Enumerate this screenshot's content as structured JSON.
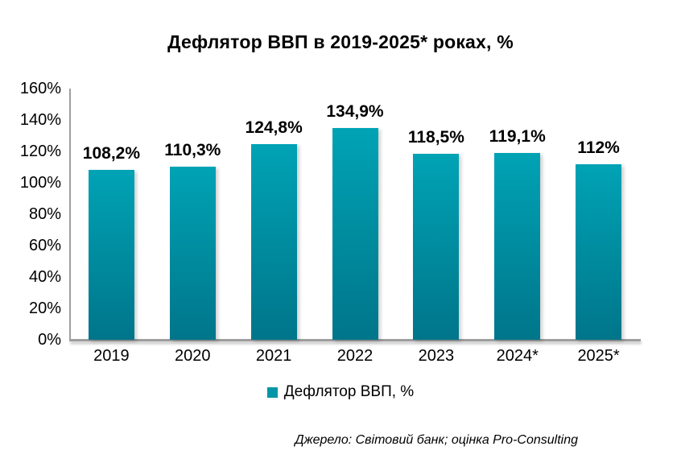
{
  "title": "Дефлятор ВВП в 2019-2025* роках, %",
  "chart_data": {
    "type": "bar",
    "title": "Дефлятор ВВП в 2019-2025* роках, %",
    "categories": [
      "2019",
      "2020",
      "2021",
      "2022",
      "2023",
      "2024*",
      "2025*"
    ],
    "series": [
      {
        "name": "Дефлятор ВВП, %",
        "values": [
          108.2,
          110.3,
          124.8,
          134.9,
          118.5,
          119.1,
          112
        ],
        "value_labels": [
          "108,2%",
          "110,3%",
          "124,8%",
          "134,9%",
          "118,5%",
          "119,1%",
          "112%"
        ]
      }
    ],
    "xlabel": "",
    "ylabel": "",
    "ylim": [
      0,
      160
    ],
    "ytick_step": 20,
    "ytick_labels": [
      "0%",
      "20%",
      "40%",
      "60%",
      "80%",
      "100%",
      "120%",
      "140%",
      "160%"
    ],
    "grid": false,
    "legend_position": "bottom"
  },
  "legend": {
    "label": "Дефлятор ВВП, %",
    "marker_color": "#0296A6"
  },
  "source_note": "Джерело: Світовий банк; оцінка Pro-Consulting",
  "colors": {
    "bar_gradient_top": "#00A3B5",
    "bar_gradient_bottom": "#00758A",
    "axis_line": "#9E9E9E",
    "text": "#000000",
    "background": "#FFFFFF"
  }
}
